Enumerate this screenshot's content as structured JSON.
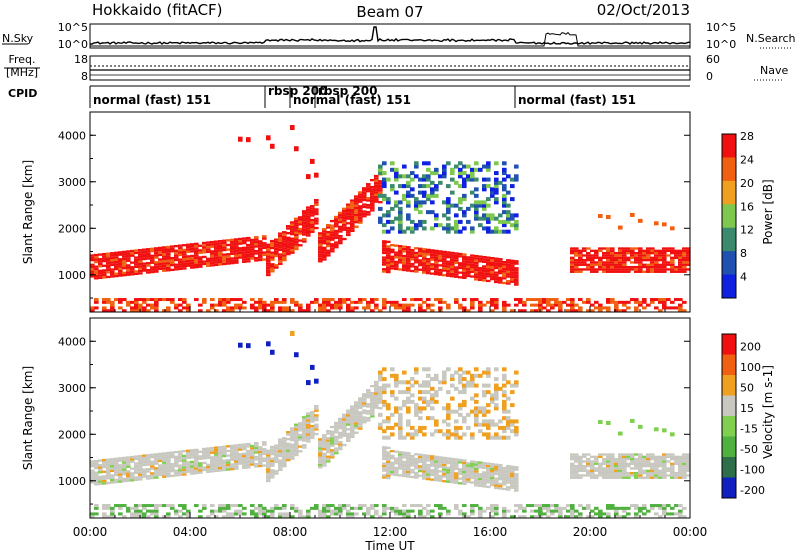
{
  "header": {
    "station": "Hokkaido (fitACF)",
    "beam": "Beam 07",
    "date": "02/Oct/2013"
  },
  "top_panels": {
    "nsky_label": "N.Sky",
    "nsky_ticks": [
      "10^5",
      "10^0"
    ],
    "nsearch_label": "N.Search",
    "nsearch_ticks": [
      "10^5",
      "10^0"
    ],
    "freq_label_1": "Freq.",
    "freq_label_2": "[MHz]",
    "freq_ticks": [
      "18",
      "8"
    ],
    "nave_label": "Nave",
    "nave_ticks": [
      "60",
      "0"
    ],
    "cpid_label": "CPID",
    "cpid_segments": [
      {
        "label": "normal (fast) 151",
        "start_h": 0
      },
      {
        "label": "rbsp 200",
        "start_h": 7
      },
      {
        "label": "normal (fast) 151",
        "start_h": 8
      },
      {
        "label": "rbsp 200",
        "start_h": 9
      },
      {
        "label": "normal (fast) 151",
        "start_h": 17
      }
    ]
  },
  "chart_data": [
    {
      "type": "heatmap",
      "panel": "power",
      "ylabel": "Slant Range [km]",
      "yticks": [
        "1000",
        "2000",
        "3000",
        "4000"
      ],
      "ylim": [
        200,
        4500
      ],
      "xlim_hours": [
        0,
        24
      ],
      "colorbar_label": "Power [dB]",
      "colorbar_ticks": [
        "4",
        "8",
        "12",
        "16",
        "20",
        "24",
        "28"
      ],
      "colorbar_range": [
        0,
        30
      ],
      "colors": [
        "#1020e0",
        "#2050b0",
        "#3c8a6e",
        "#7ec850",
        "#f0a020",
        "#f06010",
        "#f01010"
      ]
    },
    {
      "type": "heatmap",
      "panel": "velocity",
      "ylabel": "Slant Range [km]",
      "yticks": [
        "1000",
        "2000",
        "3000",
        "4000"
      ],
      "ylim": [
        200,
        4500
      ],
      "xlim_hours": [
        0,
        24
      ],
      "colorbar_label": "Velocity [m s-1]",
      "colorbar_ticks": [
        "200",
        "100",
        "50",
        "15",
        "-15",
        "-50",
        "-100",
        "-200"
      ],
      "colorbar_range": [
        -250,
        250
      ],
      "colors": [
        "#1020c0",
        "#2e6e4a",
        "#50b040",
        "#80d050",
        "#c8c8c0",
        "#f0a020",
        "#f06010",
        "#f01010"
      ]
    }
  ],
  "xaxis": {
    "ticks": [
      "00:00",
      "04:00",
      "08:00",
      "12:00",
      "16:00",
      "20:00",
      "00:00"
    ],
    "tick_hours": [
      0,
      4,
      8,
      12,
      16,
      20,
      24
    ],
    "label": "Time UT"
  }
}
